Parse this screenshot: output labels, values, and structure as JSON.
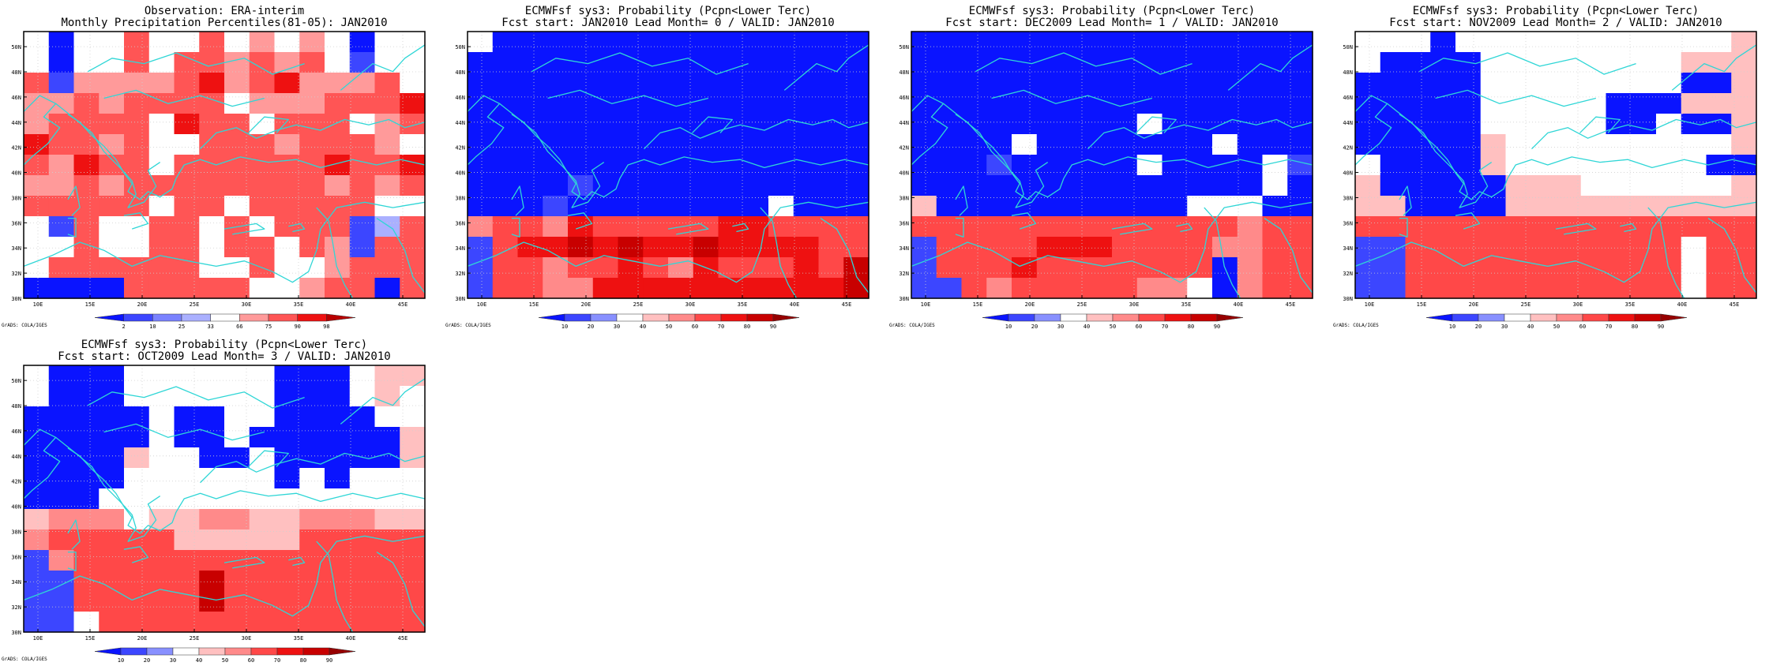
{
  "figure": {
    "watermark": "GrADS: COLA/IGES",
    "coast_color": "#2fd6d6",
    "frame_color": "#000000",
    "lat_ticks": [
      "30N",
      "32N",
      "34N",
      "36N",
      "38N",
      "40N",
      "42N",
      "44N",
      "46N",
      "48N",
      "50N"
    ],
    "lon_ticks": [
      "10E",
      "15E",
      "20E",
      "25E",
      "30E",
      "35E",
      "40E",
      "45E"
    ]
  },
  "colorscales": {
    "percentile": {
      "labels": [
        "2",
        "10",
        "25",
        "33",
        "66",
        "75",
        "90",
        "98"
      ],
      "colors": [
        "#0a14ff",
        "#3c46ff",
        "#7a82ff",
        "#aab0ff",
        "#ffffff",
        "#ff9a9a",
        "#ff5555",
        "#ee1111",
        "#b80000"
      ]
    },
    "probability": {
      "labels": [
        "10",
        "20",
        "30",
        "40",
        "50",
        "60",
        "70",
        "80",
        "90"
      ],
      "colors": [
        "#0a14ff",
        "#3c46ff",
        "#8890ff",
        "#ffffff",
        "#ffc0c0",
        "#ff8a8a",
        "#ff4848",
        "#ee1111",
        "#c80000",
        "#960000"
      ]
    }
  },
  "panels": [
    {
      "id": "obs",
      "title_line1": "Observation: ERA-interim",
      "title_line2": "Monthly Precipitation Percentiles(81-05): JAN2010",
      "scale": "percentile",
      "grid": [
        "wawwqwwqxpwpwaww",
        "wawwqwqqpqpqwbww",
        "qbppppqrpqrpppqw",
        "ppqpqqqqwpppqqqr",
        "pqqqqwrqqwqqqwpq",
        "rqqpqwwqqqpqqqpw",
        "qprqqwqqqqqqrqqr",
        "ppqpqqqqqqqqpqpq",
        "qqqqqwqqwqqqqqww",
        "wbqwwqqwqwqqqbdq",
        "wwqwwqqwqqwqpbqq",
        "wqqqqqqwwqwwpqqq",
        "aaaaqqqqqwwpqqaq"
      ]
    },
    {
      "id": "lead0",
      "title_line1": "ECMWFsf sys3: Probability (Pcpn<Lower Terc)",
      "title_line2": "Fcst start: JAN2010  Lead Month= 0 / VALID: JAN2010",
      "scale": "probability",
      "grid": [
        "waaaaaaaaaaaaaaa",
        "aaaaaaaaaaaaaaaa",
        "aaaaaaaaaaaaaaaa",
        "aaaaaaaaaaaaaaaa",
        "aaaaaaaaaaaaaaaa",
        "aaaaaaaaaaaaaaaa",
        "aaaaaaaaaaaaaaaa",
        "aaaabaaaaaaaaaaa",
        "aaabaaaaaaaawaaa",
        "ghhgihhhhhiihhhh",
        "bhiijijiijiiiihh",
        "bhhghhihgihhhihj",
        "bhhggiiiiiiiiiij"
      ]
    },
    {
      "id": "lead1",
      "title_line1": "ECMWFsf sys3: Probability (Pcpn<Lower Terc)",
      "title_line2": "Fcst start: DEC2009  Lead Month= 1 / VALID: JAN2010",
      "scale": "probability",
      "grid": [
        "aaaaaaaaaaaaaaaa",
        "aaaaaaaaaaaaaaaa",
        "aaaaaaaaaaaaaaaa",
        "aaaaaaaaaaaaaaaa",
        "aaaaaaaaawaaaaaa",
        "aaaawaaaaaaawaaa",
        "aaabaaaaawaaaawb",
        "aaaaaaaaaaaaaawa",
        "faaaaaaaaaawwwaa",
        "hhhhhhhhhhhhhghh",
        "bhhhhiiihhhhgghh",
        "bhhhihhhhhhhaghh",
        "bbhghhhhhggwaghh"
      ]
    },
    {
      "id": "lead2",
      "title_line1": "ECMWFsf sys3: Probability (Pcpn<Lower Terc)",
      "title_line2": "Fcst start: NOV2009  Lead Month= 2 / VALID: JAN2010",
      "scale": "probability",
      "grid": [
        "wwwawwwwwwwwwwwf",
        "waaaawwwwwwwwfff",
        "aaaaawwwwwwwwaaf",
        "aaaaawwwwwaaafff",
        "aaaaawwwwwaawaaf",
        "aaaaafwwwwwwwwwf",
        "waaaafwwwwwwwwaa",
        "faaaaafffwwwwwwf",
        "ffaaaaffffffffff",
        "hhhhhhhhhhhhhhhh",
        "bbhhhhhhhhhhhwhh",
        "bbhhhhhhhhhhhwhh",
        "bbhhhhhhhhhhhwhh"
      ]
    },
    {
      "id": "lead3",
      "title_line1": "ECMWFsf sys3: Probability (Pcpn<Lower Terc)",
      "title_line2": "Fcst start: OCT2009  Lead Month= 3 / VALID: JAN2010",
      "scale": "probability",
      "grid": [
        "waaawwwwwwaaawff",
        "waaawwwwwwaaawfw",
        "aaaaawaawwaaaaww",
        "aaaaawaawaaaaaaf",
        "aaaafwwaawaaaaaf",
        "aaaawwwwwwawawww",
        "aaawwwwwwwwwwwww",
        "fgggwffggffgggff",
        "ghhhhhfffffhhhhh",
        "bghhhhhhhhhhhhhh",
        "bbhhhhhjhhhhhhhh",
        "bbhhhhhjhhhhhhhh",
        "bbwhhhhhhhhhhhhh"
      ]
    }
  ]
}
